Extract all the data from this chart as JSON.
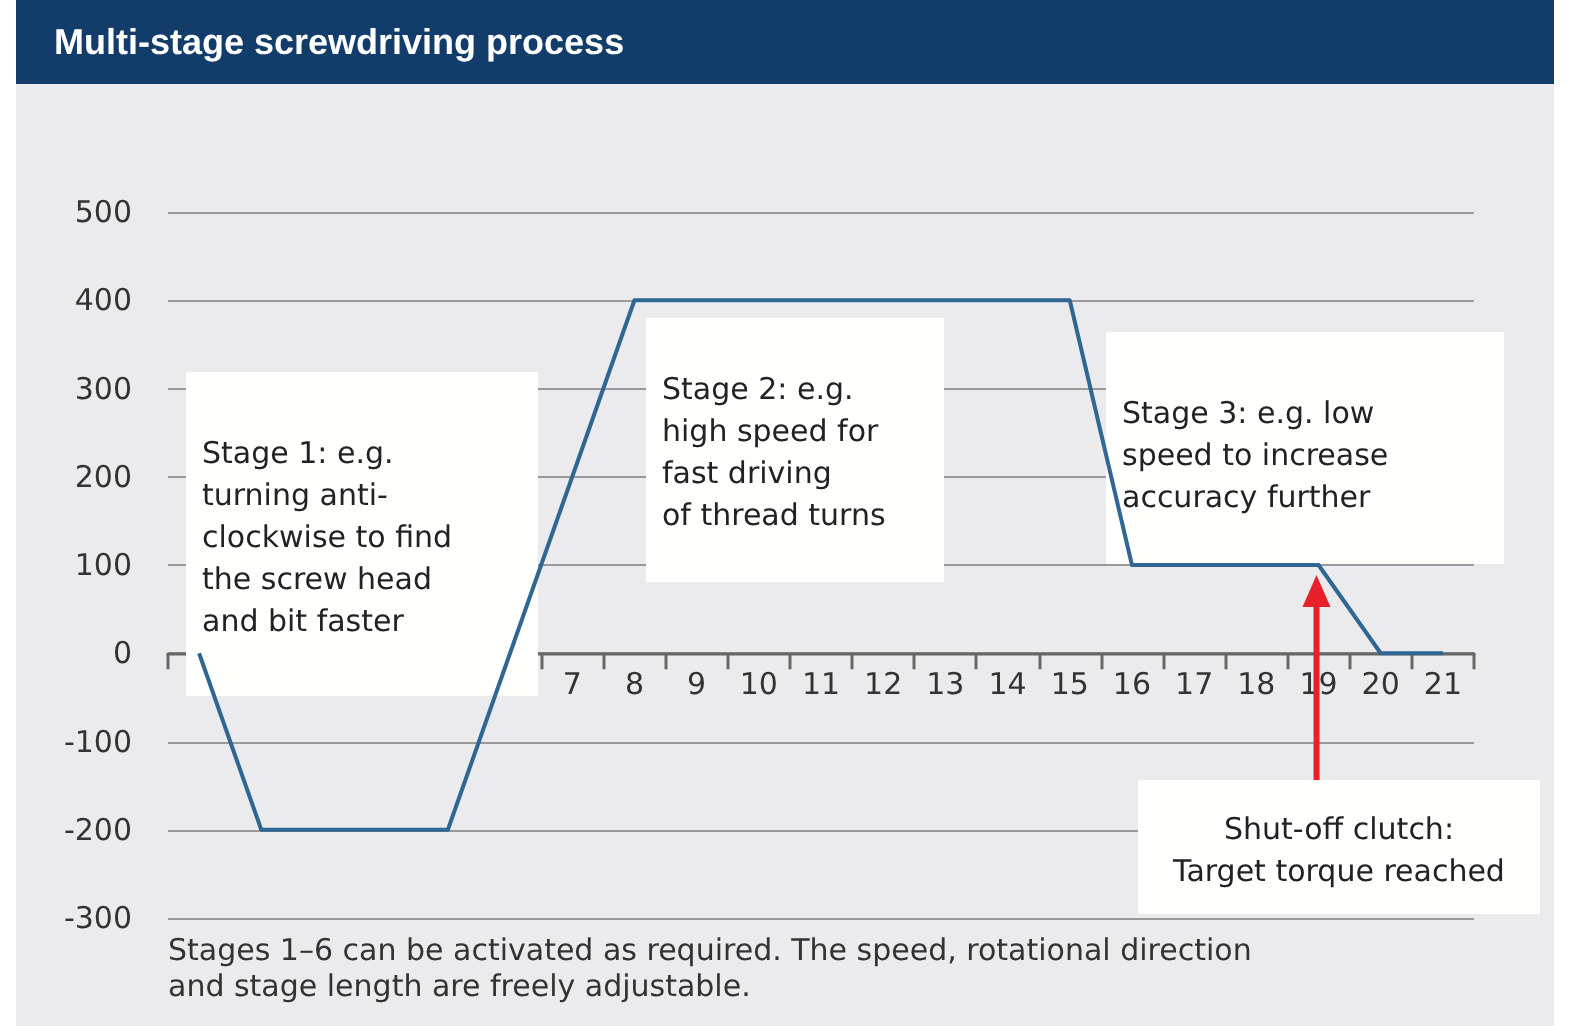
{
  "chart_data": {
    "type": "line",
    "title": "Multi-stage screwdriving process",
    "categories": [
      null,
      null,
      null,
      null,
      null,
      null,
      "7",
      "8",
      "9",
      "10",
      "11",
      "12",
      "13",
      "14",
      "15",
      "16",
      "17",
      "18",
      "19",
      "20",
      "21"
    ],
    "series": [
      {
        "color": "#2f6792",
        "values": [
          0,
          -200,
          -200,
          -200,
          -200,
          0,
          200,
          400,
          400,
          400,
          400,
          400,
          400,
          400,
          400,
          100,
          100,
          100,
          100,
          0,
          0
        ]
      }
    ],
    "ylim": [
      -300,
      500
    ],
    "yticks": [
      -300,
      -200,
      -100,
      0,
      100,
      200,
      300,
      400,
      500
    ],
    "grid": "y",
    "marker": "none",
    "line_style": "solid",
    "annotations": [
      "Stage 1: e.g.\nturning anti-\nclockwise to find\nthe screw head\nand bit faster",
      "Stage 2: e.g.\nhigh speed for\nfast driving\nof thread turns",
      "Stage 3: e.g. low\nspeed to increase\naccuracy further",
      "Shut-off clutch:\nTarget torque reached",
      "Stages 1–6 can be activated as required. The speed, rotational direction\nand stage length are freely adjustable."
    ]
  }
}
